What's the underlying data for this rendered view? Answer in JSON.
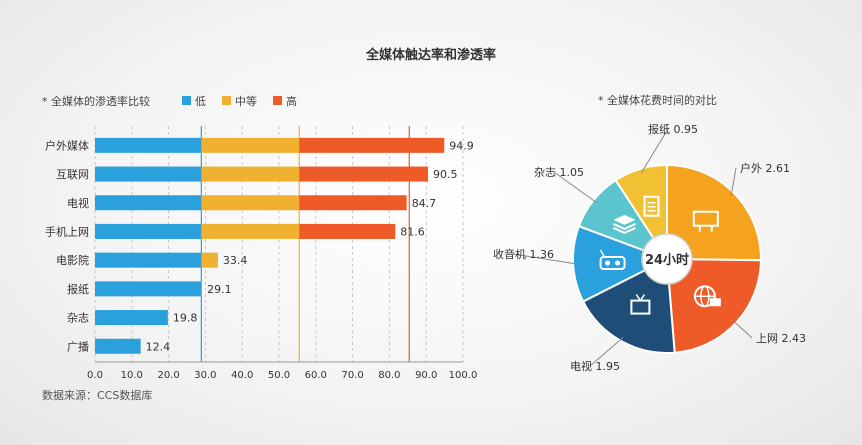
{
  "title": "全媒体触达率和渗透率",
  "source": "数据来源：CCS数据库",
  "colors": {
    "low": "#2aa0dc",
    "mid": "#f0b030",
    "high": "#ee5a28",
    "pie_outdoor": "#f5a21e",
    "pie_internet": "#ee5a28",
    "pie_tv": "#1e4d78",
    "pie_radio": "#2aa0dc",
    "pie_magazine": "#5cc4cc",
    "pie_newspaper": "#f1c033"
  },
  "chart_data": [
    {
      "type": "bar",
      "orientation": "horizontal",
      "stacked": true,
      "subtitle": "* 全媒体的渗透率比较",
      "legend": [
        "低",
        "中等",
        "高"
      ],
      "legend_placement": "top",
      "categories": [
        "户外媒体",
        "互联网",
        "电视",
        "手机上网",
        "电影院",
        "报纸",
        "杂志",
        "广播"
      ],
      "totals": [
        94.9,
        90.5,
        84.7,
        81.6,
        33.4,
        29.1,
        19.8,
        12.4
      ],
      "series": [
        {
          "name": "低",
          "values": [
            28.9,
            28.9,
            28.9,
            28.9,
            28.9,
            28.9,
            19.8,
            12.4
          ]
        },
        {
          "name": "中等",
          "values": [
            26.6,
            26.6,
            26.6,
            26.6,
            4.5,
            0.2,
            0,
            0
          ]
        },
        {
          "name": "高",
          "values": [
            39.4,
            35.0,
            29.2,
            26.1,
            0,
            0,
            0,
            0
          ]
        }
      ],
      "xlim": [
        0,
        100
      ],
      "xticks": [
        "0.0",
        "10.0",
        "20.0",
        "30.0",
        "40.0",
        "50.0",
        "60.0",
        "70.0",
        "80.0",
        "90.0",
        "100.0"
      ],
      "reference_lines": [
        28.9,
        55.5,
        85.4
      ],
      "grid": true
    },
    {
      "type": "pie",
      "subtitle": "* 全媒体花费时间的对比",
      "center_label": "24小时",
      "slices": [
        {
          "label": "户外",
          "value": 2.61,
          "icon": "billboard-icon"
        },
        {
          "label": "上网",
          "value": 2.43,
          "icon": "globe-icon"
        },
        {
          "label": "电视",
          "value": 1.95,
          "icon": "tv-icon"
        },
        {
          "label": "收音机",
          "value": 1.36,
          "icon": "radio-icon"
        },
        {
          "label": "杂志",
          "value": 1.05,
          "icon": "magazine-stack-icon"
        },
        {
          "label": "报纸",
          "value": 0.95,
          "icon": "newspaper-icon"
        }
      ]
    }
  ]
}
